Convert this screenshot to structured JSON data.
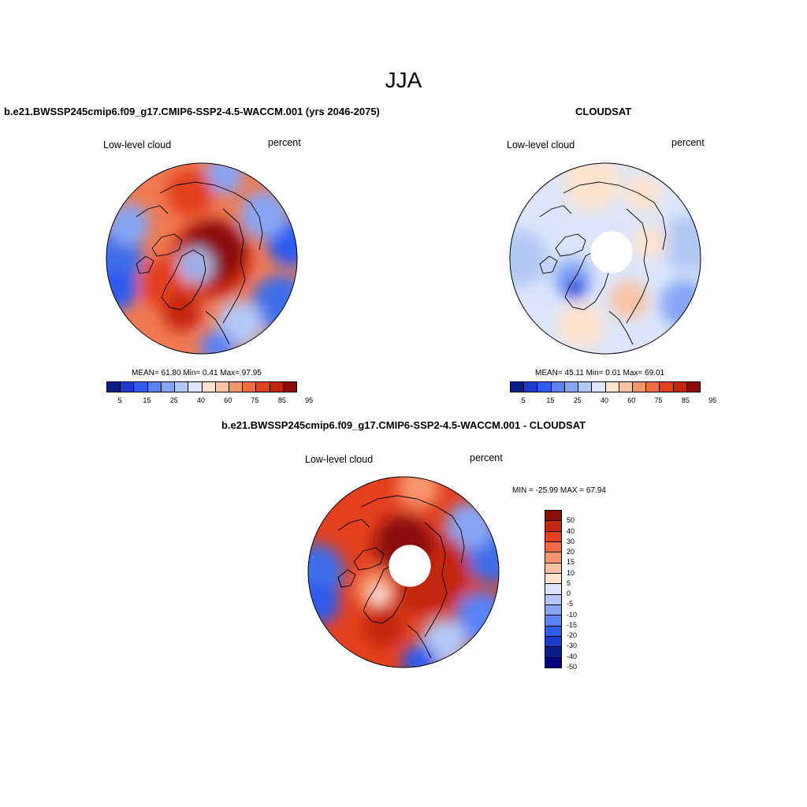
{
  "title": "JJA",
  "panel_left": {
    "title": "b.e21.BWSSP245cmip6.f09_g17.CMIP6-SSP2-4.5-WACCM.001 (yrs 2046-2075)",
    "var": "Low-level cloud",
    "units": "percent",
    "stats": "MEAN=  61.80  Min=   0.41  Max=  97.95"
  },
  "panel_right": {
    "title": "CLOUDSAT",
    "var": "Low-level cloud",
    "units": "percent",
    "stats": "MEAN=  45.11  Min=   0.01  Max=  69.01"
  },
  "panel_diff": {
    "title": "b.e21.BWSSP245cmip6.f09_g17.CMIP6-SSP2-4.5-WACCM.001 - CLOUDSAT",
    "var": "Low-level cloud",
    "units": "percent",
    "stats": "MIN = -25.99 MAX =  67.94"
  },
  "colorbar_abs": {
    "colors": [
      "#0a1e8c",
      "#1b3ccc",
      "#2f5cf0",
      "#5a82f5",
      "#86a6f5",
      "#b3c8f5",
      "#dbe6fb",
      "#fde3cf",
      "#fbc3a3",
      "#f7956d",
      "#f06a44",
      "#e2401e",
      "#c4260e",
      "#8c0d0a"
    ],
    "labels": [
      "5",
      "15",
      "25",
      "40",
      "60",
      "75",
      "85",
      "95"
    ]
  },
  "colorbar_diff": {
    "colors": [
      "#8c0d0a",
      "#c4260e",
      "#e2401e",
      "#f06a44",
      "#f7956d",
      "#fbc3a3",
      "#fde3cf",
      "#dbe6fb",
      "#b3c8f5",
      "#86a6f5",
      "#5a82f5",
      "#2f5cf0",
      "#1b3ccc",
      "#0a1e8c",
      "#000080"
    ],
    "labels": [
      "50",
      "40",
      "30",
      "20",
      "15",
      "10",
      "5",
      "0",
      "-5",
      "-10",
      "-15",
      "-20",
      "-30",
      "-40",
      "-50"
    ]
  },
  "maps": {
    "left": {
      "background": "#f07a52",
      "blobs": [
        {
          "ang": 180,
          "r": 0.92,
          "s": 0.3,
          "c": "#3f6ee8"
        },
        {
          "ang": 200,
          "r": 0.95,
          "s": 0.22,
          "c": "#2f5cf0"
        },
        {
          "ang": 155,
          "r": 0.85,
          "s": 0.22,
          "c": "#86a6f5"
        },
        {
          "ang": 10,
          "r": 0.95,
          "s": 0.25,
          "c": "#2f5cf0"
        },
        {
          "ang": 35,
          "r": 0.8,
          "s": 0.25,
          "c": "#86a6f5"
        },
        {
          "ang": 330,
          "r": 0.95,
          "s": 0.3,
          "c": "#3f6ee8"
        },
        {
          "ang": 300,
          "r": 0.8,
          "s": 0.25,
          "c": "#b3c8f5"
        },
        {
          "ang": 280,
          "r": 0.95,
          "s": 0.18,
          "c": "#5a82f5"
        },
        {
          "ang": 75,
          "r": 0.9,
          "s": 0.2,
          "c": "#86a6f5"
        },
        {
          "ang": 0,
          "r": 0.1,
          "s": 0.42,
          "c": "#c4260e"
        },
        {
          "ang": 30,
          "r": 0.15,
          "s": 0.32,
          "c": "#8c0d0a"
        },
        {
          "ang": 100,
          "r": 0.7,
          "s": 0.25,
          "c": "#e2401e"
        },
        {
          "ang": 215,
          "r": 0.45,
          "s": 0.28,
          "c": "#e2401e"
        },
        {
          "ang": 230,
          "r": 0.1,
          "s": 0.18,
          "c": "#b3c8f5"
        },
        {
          "ang": 230,
          "r": 0.12,
          "s": 0.06,
          "c": "#1b3ccc"
        },
        {
          "ang": 250,
          "r": 0.6,
          "s": 0.2,
          "c": "#c4260e"
        }
      ]
    },
    "right": {
      "background": "#dbe6fb",
      "blobs": [
        {
          "ang": 180,
          "r": 0.9,
          "s": 0.3,
          "c": "#b3c8f5"
        },
        {
          "ang": 10,
          "r": 0.9,
          "s": 0.3,
          "c": "#b3c8f5"
        },
        {
          "ang": 330,
          "r": 0.95,
          "s": 0.25,
          "c": "#86a6f5"
        },
        {
          "ang": 100,
          "r": 0.8,
          "s": 0.3,
          "c": "#fde3cf"
        },
        {
          "ang": 60,
          "r": 0.8,
          "s": 0.2,
          "c": "#fde3cf"
        },
        {
          "ang": 250,
          "r": 0.75,
          "s": 0.25,
          "c": "#fde3cf"
        },
        {
          "ang": 300,
          "r": 0.5,
          "s": 0.2,
          "c": "#fbc3a3"
        },
        {
          "ang": 210,
          "r": 0.4,
          "s": 0.2,
          "c": "#86a6f5"
        },
        {
          "ang": 225,
          "r": 0.45,
          "s": 0.12,
          "c": "#2f5cf0"
        },
        {
          "ang": 225,
          "r": 0.45,
          "s": 0.05,
          "c": "#0a1e8c"
        },
        {
          "ang": 20,
          "r": 0.5,
          "s": 0.18,
          "c": "#fde3cf"
        }
      ],
      "hole": 0.22
    },
    "diff": {
      "background": "#e2401e",
      "blobs": [
        {
          "ang": 180,
          "r": 0.92,
          "s": 0.3,
          "c": "#3f6ee8"
        },
        {
          "ang": 200,
          "r": 0.95,
          "s": 0.22,
          "c": "#2f5cf0"
        },
        {
          "ang": 10,
          "r": 0.95,
          "s": 0.28,
          "c": "#3f6ee8"
        },
        {
          "ang": 35,
          "r": 0.85,
          "s": 0.25,
          "c": "#86a6f5"
        },
        {
          "ang": 330,
          "r": 0.95,
          "s": 0.28,
          "c": "#5a82f5"
        },
        {
          "ang": 300,
          "r": 0.85,
          "s": 0.25,
          "c": "#b3c8f5"
        },
        {
          "ang": 280,
          "r": 0.95,
          "s": 0.18,
          "c": "#2f5cf0"
        },
        {
          "ang": 80,
          "r": 0.9,
          "s": 0.22,
          "c": "#f7956d"
        },
        {
          "ang": 0,
          "r": 0.25,
          "s": 0.45,
          "c": "#c4260e"
        },
        {
          "ang": 90,
          "r": 0.3,
          "s": 0.3,
          "c": "#8c0d0a"
        },
        {
          "ang": 210,
          "r": 0.35,
          "s": 0.2,
          "c": "#f7956d"
        },
        {
          "ang": 225,
          "r": 0.35,
          "s": 0.08,
          "c": "#ffffff"
        },
        {
          "ang": 250,
          "r": 0.6,
          "s": 0.22,
          "c": "#c4260e"
        }
      ],
      "hole": 0.22
    }
  }
}
